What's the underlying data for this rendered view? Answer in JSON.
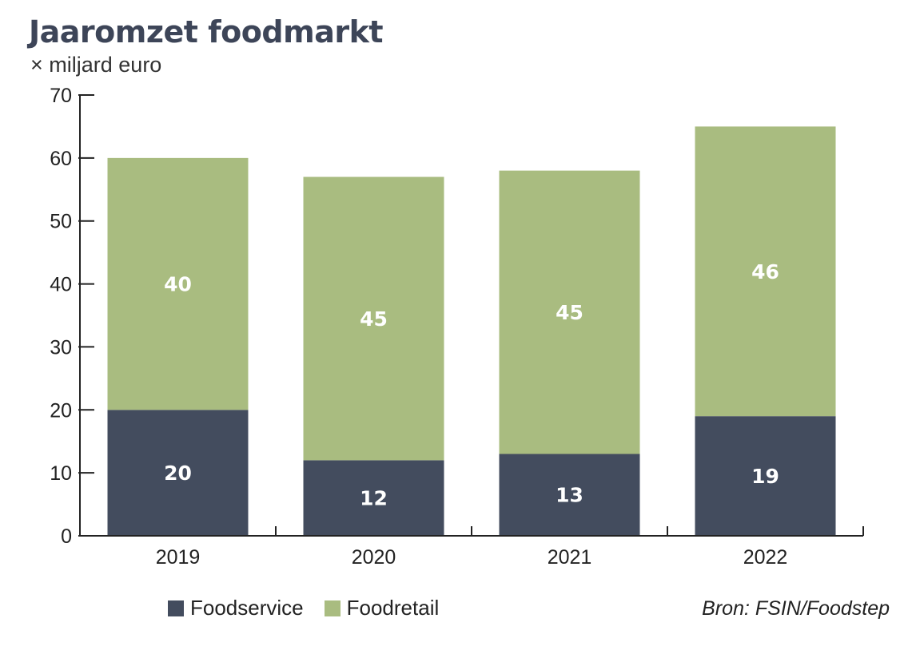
{
  "title": "Jaaromzet foodmarkt",
  "subtitle": "× miljard euro",
  "source": "Bron: FSIN/Foodstep",
  "colors": {
    "Foodservice": "#434c5e",
    "Foodretail": "#a9bc80",
    "axis": "#222222",
    "label": "#ffffff"
  },
  "chart_data": {
    "type": "bar",
    "stacked": true,
    "categories": [
      "2019",
      "2020",
      "2021",
      "2022"
    ],
    "series": [
      {
        "name": "Foodservice",
        "values": [
          20,
          12,
          13,
          19
        ]
      },
      {
        "name": "Foodretail",
        "values": [
          40,
          45,
          45,
          46
        ]
      }
    ],
    "ylim": [
      0,
      70
    ],
    "yticks": [
      0,
      10,
      20,
      30,
      40,
      50,
      60,
      70
    ],
    "grid": false,
    "legend_position": "bottom-left"
  }
}
